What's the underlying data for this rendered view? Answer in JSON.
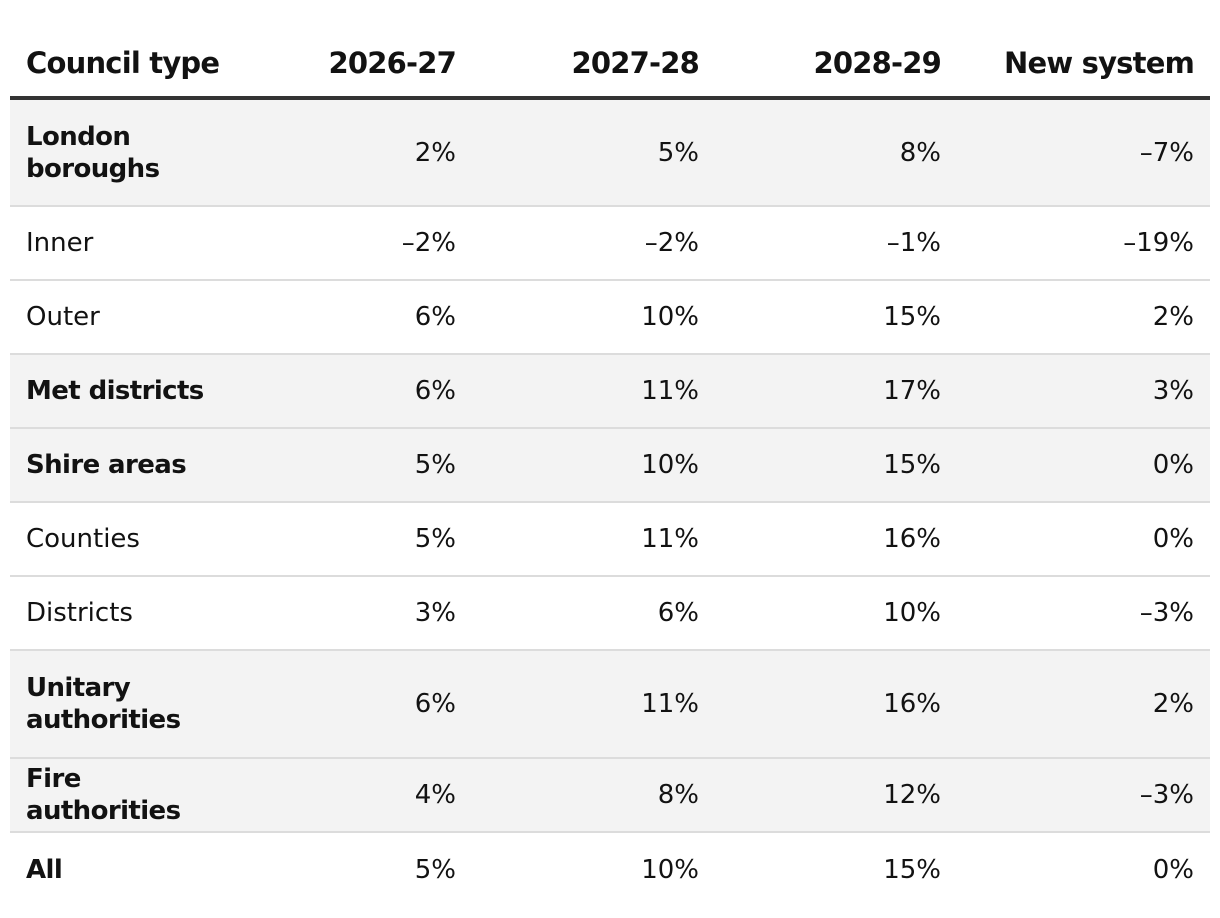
{
  "chart_data": {
    "type": "table",
    "columns": [
      "Council type",
      "2026-27",
      "2027-28",
      "2028-29",
      "New system"
    ],
    "rows": [
      {
        "label": "London boroughs",
        "values": [
          "2%",
          "5%",
          "8%",
          "–7%"
        ],
        "bold": true,
        "shaded": true,
        "tall": true
      },
      {
        "label": "Inner",
        "values": [
          "–2%",
          "–2%",
          "–1%",
          "–19%"
        ],
        "bold": false,
        "shaded": false,
        "tall": false
      },
      {
        "label": "Outer",
        "values": [
          "6%",
          "10%",
          "15%",
          "2%"
        ],
        "bold": false,
        "shaded": false,
        "tall": false
      },
      {
        "label": "Met districts",
        "values": [
          "6%",
          "11%",
          "17%",
          "3%"
        ],
        "bold": true,
        "shaded": true,
        "tall": false
      },
      {
        "label": "Shire areas",
        "values": [
          "5%",
          "10%",
          "15%",
          "0%"
        ],
        "bold": true,
        "shaded": true,
        "tall": false
      },
      {
        "label": "Counties",
        "values": [
          "5%",
          "11%",
          "16%",
          "0%"
        ],
        "bold": false,
        "shaded": false,
        "tall": false
      },
      {
        "label": "Districts",
        "values": [
          "3%",
          "6%",
          "10%",
          "–3%"
        ],
        "bold": false,
        "shaded": false,
        "tall": false
      },
      {
        "label": "Unitary authorities",
        "values": [
          "6%",
          "11%",
          "16%",
          "2%"
        ],
        "bold": true,
        "shaded": true,
        "tall": true
      },
      {
        "label": "Fire authorities",
        "values": [
          "4%",
          "8%",
          "12%",
          "–3%"
        ],
        "bold": true,
        "shaded": true,
        "tall": false
      },
      {
        "label": "All",
        "values": [
          "5%",
          "10%",
          "15%",
          "0%"
        ],
        "bold": true,
        "shaded": false,
        "tall": false
      }
    ]
  }
}
